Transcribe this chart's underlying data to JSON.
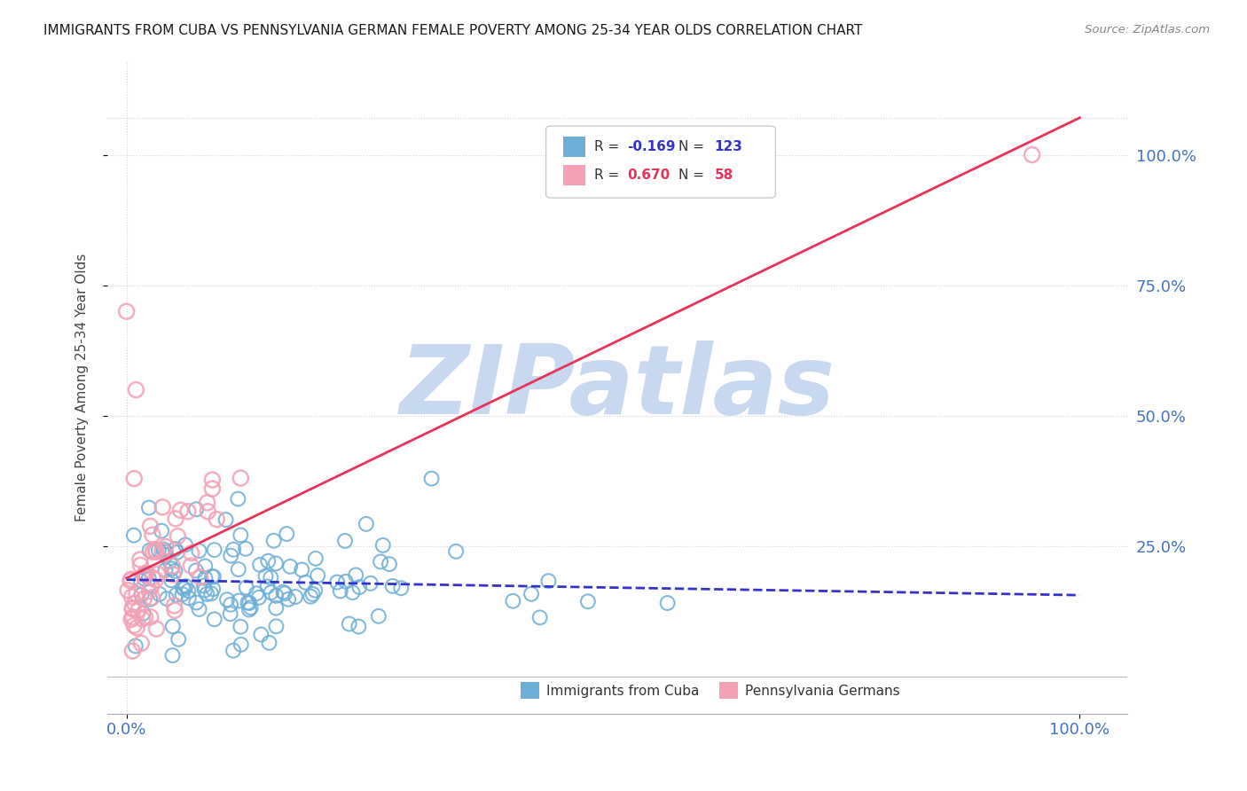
{
  "title": "IMMIGRANTS FROM CUBA VS PENNSYLVANIA GERMAN FEMALE POVERTY AMONG 25-34 YEAR OLDS CORRELATION CHART",
  "source": "Source: ZipAtlas.com",
  "ylabel": "Female Poverty Among 25-34 Year Olds",
  "x_tick_left": "0.0%",
  "x_tick_right": "100.0%",
  "y_tick_labels": [
    "25.0%",
    "50.0%",
    "75.0%",
    "100.0%"
  ],
  "y_tick_positions": [
    0.25,
    0.5,
    0.75,
    1.0
  ],
  "legend_r1": "-0.169",
  "legend_n1": "123",
  "legend_r2": "0.670",
  "legend_n2": "58",
  "color_blue": "#6baed6",
  "color_pink": "#f4a0b5",
  "trendline_blue": "#3333cc",
  "trendline_pink": "#e8325a",
  "watermark": "ZIPatlas",
  "watermark_color": "#c8d8f0",
  "background_color": "#ffffff",
  "legend_label_blue": "Immigrants from Cuba",
  "legend_label_pink": "Pennsylvania Germans"
}
